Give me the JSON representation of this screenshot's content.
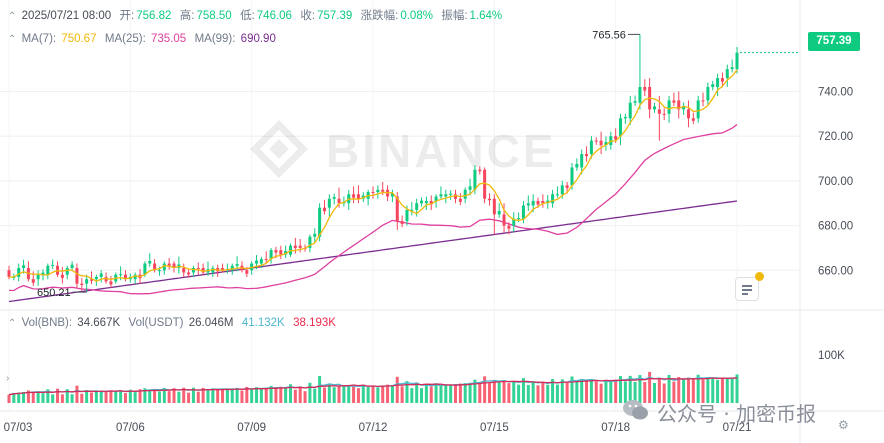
{
  "header": {
    "datetime": "2025/07/21 08:00",
    "open_label": "开:",
    "open": "756.82",
    "high_label": "高:",
    "high": "758.50",
    "low_label": "低:",
    "low": "746.06",
    "close_label": "收:",
    "close": "757.39",
    "change_label": "涨跌幅:",
    "change": "0.08%",
    "amp_label": "振幅:",
    "amp": "1.64%"
  },
  "ma": {
    "ma7_label": "MA(7):",
    "ma7": "750.67",
    "ma25_label": "MA(25):",
    "ma25": "735.05",
    "ma99_label": "MA(99):",
    "ma99": "690.90"
  },
  "volume": {
    "bnb_label": "Vol(BNB):",
    "bnb": "34.667K",
    "usdt_label": "Vol(USDT)",
    "usdt": "26.046M",
    "ma1": "41.132K",
    "ma2": "38.193K"
  },
  "last_price": "757.39",
  "watermark": "公众号 · 加密币报",
  "colors": {
    "up": "#0ecb81",
    "down": "#f6465d",
    "ma7": "#f0b90b",
    "ma25": "#e040a0",
    "ma99": "#7b2d8f"
  },
  "chart_data": {
    "type": "candlestick",
    "interval": "4h",
    "x_axis_labels": [
      "07/03",
      "07/06",
      "07/09",
      "07/12",
      "07/15",
      "07/18",
      "07/21"
    ],
    "y_axis_labels": [
      660,
      680,
      700,
      720,
      740
    ],
    "ylim": [
      644,
      772
    ],
    "volume_axis_label": "100K",
    "volume_ylim": [
      0,
      140000
    ],
    "annotations": {
      "max": "765.56",
      "min": "650.21"
    },
    "ohlc_anchors": [
      [
        660,
        662,
        656,
        657
      ],
      [
        657,
        663,
        655,
        661
      ],
      [
        661,
        664,
        655,
        656
      ],
      [
        656,
        660,
        653,
        658
      ],
      [
        658,
        663,
        656,
        662
      ],
      [
        662,
        664,
        657,
        658
      ],
      [
        658,
        662,
        656,
        661
      ],
      [
        661,
        663,
        652,
        654
      ],
      [
        654,
        658,
        650.21,
        656
      ],
      [
        656,
        658,
        653,
        657
      ],
      [
        657,
        659,
        654,
        655
      ],
      [
        655,
        659,
        654,
        658
      ],
      [
        658,
        660,
        655,
        656
      ],
      [
        656,
        659,
        654,
        658
      ],
      [
        658,
        664,
        657,
        663
      ],
      [
        663,
        665,
        659,
        660
      ],
      [
        660,
        664,
        658,
        663
      ],
      [
        663,
        664,
        659,
        661
      ],
      [
        661,
        663,
        657,
        659
      ],
      [
        659,
        662,
        657,
        661
      ],
      [
        661,
        663,
        658,
        659
      ],
      [
        659,
        662,
        657,
        661
      ],
      [
        661,
        663,
        659,
        660
      ],
      [
        660,
        663,
        658,
        662
      ],
      [
        662,
        664,
        659,
        660
      ],
      [
        660,
        664,
        658,
        663
      ],
      [
        663,
        666,
        661,
        665
      ],
      [
        665,
        670,
        663,
        669
      ],
      [
        669,
        671,
        665,
        667
      ],
      [
        667,
        672,
        666,
        671
      ],
      [
        671,
        674,
        668,
        670
      ],
      [
        670,
        676,
        668,
        675
      ],
      [
        675,
        690,
        673,
        688
      ],
      [
        688,
        694,
        684,
        692
      ],
      [
        692,
        697,
        688,
        690
      ],
      [
        690,
        696,
        687,
        694
      ],
      [
        694,
        698,
        690,
        692
      ],
      [
        692,
        696,
        689,
        695
      ],
      [
        695,
        698,
        692,
        696
      ],
      [
        696,
        698,
        691,
        693
      ],
      [
        693,
        695,
        678,
        682
      ],
      [
        682,
        689,
        680,
        687
      ],
      [
        687,
        692,
        684,
        690
      ],
      [
        690,
        693,
        687,
        691
      ],
      [
        691,
        694,
        688,
        693
      ],
      [
        693,
        696,
        690,
        694
      ],
      [
        694,
        696,
        690,
        692
      ],
      [
        692,
        697,
        690,
        696
      ],
      [
        696,
        707,
        694,
        705
      ],
      [
        705,
        706,
        690,
        692
      ],
      [
        692,
        694,
        676,
        685
      ],
      [
        685,
        690,
        677,
        680
      ],
      [
        680,
        686,
        677,
        683
      ],
      [
        683,
        691,
        681,
        689
      ],
      [
        689,
        694,
        686,
        691
      ],
      [
        691,
        694,
        688,
        690
      ],
      [
        690,
        696,
        688,
        694
      ],
      [
        694,
        700,
        692,
        698
      ],
      [
        698,
        708,
        696,
        706
      ],
      [
        706,
        714,
        703,
        712
      ],
      [
        712,
        720,
        710,
        718
      ],
      [
        718,
        722,
        712,
        716
      ],
      [
        716,
        722,
        714,
        720
      ],
      [
        720,
        730,
        716,
        728
      ],
      [
        728,
        738,
        725,
        735
      ],
      [
        735,
        765.56,
        732,
        742
      ],
      [
        742,
        746,
        728,
        732
      ],
      [
        732,
        738,
        718,
        730
      ],
      [
        730,
        738,
        726,
        736
      ],
      [
        736,
        740,
        728,
        732
      ],
      [
        732,
        736,
        724,
        728
      ],
      [
        728,
        738,
        726,
        736
      ],
      [
        736,
        744,
        734,
        742
      ],
      [
        742,
        748,
        738,
        746
      ],
      [
        746,
        752,
        742,
        750
      ],
      [
        750,
        760,
        748,
        757.39
      ]
    ]
  }
}
